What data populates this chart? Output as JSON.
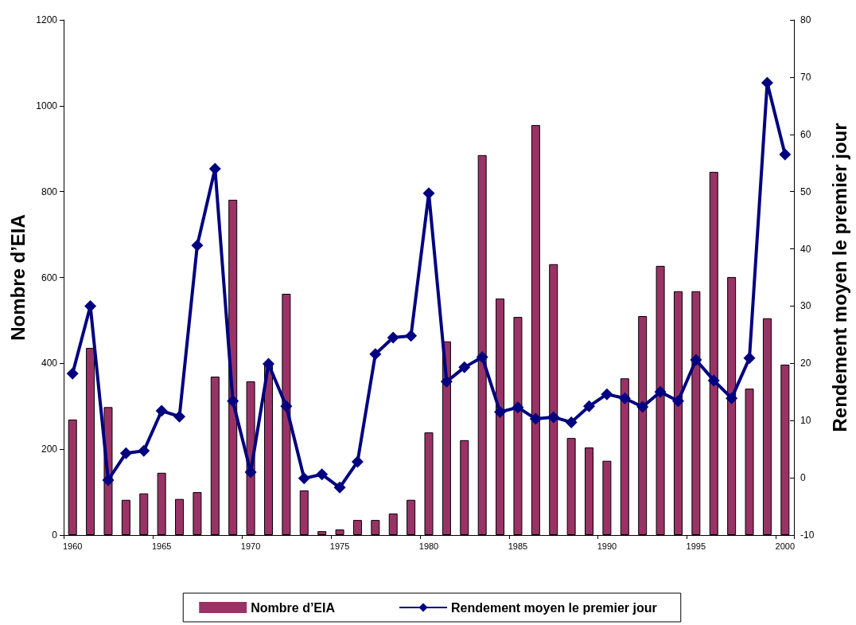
{
  "chart_data": {
    "type": "bar",
    "categories": [
      "1960",
      null,
      null,
      null,
      null,
      "1965",
      null,
      null,
      null,
      null,
      "1970",
      null,
      null,
      null,
      null,
      "1975",
      null,
      null,
      null,
      null,
      "1980",
      null,
      null,
      null,
      null,
      "1985",
      null,
      null,
      null,
      null,
      "1990",
      null,
      null,
      null,
      null,
      "1995",
      null,
      null,
      null,
      null,
      "2000"
    ],
    "series": [
      {
        "name": "Nombre d’EIA",
        "color": "#993366",
        "values": [
          269,
          436,
          298,
          82,
          97,
          145,
          84,
          100,
          369,
          781,
          358,
          400,
          562,
          104,
          9,
          13,
          35,
          35,
          50,
          82,
          239,
          451,
          221,
          885,
          551,
          508,
          955,
          631,
          226,
          204,
          173,
          365,
          510,
          627,
          568,
          568,
          846,
          601,
          341,
          505,
          397
        ]
      },
      {
        "name": "Rendement moyen le premier jour",
        "type": "line",
        "axis": "y2",
        "color": "#000080",
        "marker": "diamond",
        "line_style": "solid",
        "values": [
          18.2,
          30.0,
          -0.4,
          4.3,
          4.7,
          11.7,
          10.7,
          40.6,
          54.0,
          13.4,
          1.0,
          19.9,
          12.5,
          -0.1,
          0.6,
          -1.7,
          2.8,
          21.6,
          24.5,
          24.8,
          49.7,
          16.8,
          19.3,
          21.1,
          11.5,
          12.3,
          10.3,
          10.6,
          9.7,
          12.5,
          14.6,
          13.9,
          12.4,
          15.0,
          13.4,
          20.6,
          17.0,
          13.9,
          20.9,
          69.0,
          56.5
        ]
      }
    ],
    "ylabel": "Nombre d’EIA",
    "y2label": "Rendement moyen le premier jour",
    "ylim": [
      0,
      1200
    ],
    "yticks": [
      0,
      200,
      400,
      600,
      800,
      1000,
      1200
    ],
    "y2lim": [
      -10,
      80
    ],
    "y2ticks": [
      -10,
      0,
      10,
      20,
      30,
      40,
      50,
      60,
      70,
      80
    ],
    "grid": false,
    "legend": "bottom"
  }
}
